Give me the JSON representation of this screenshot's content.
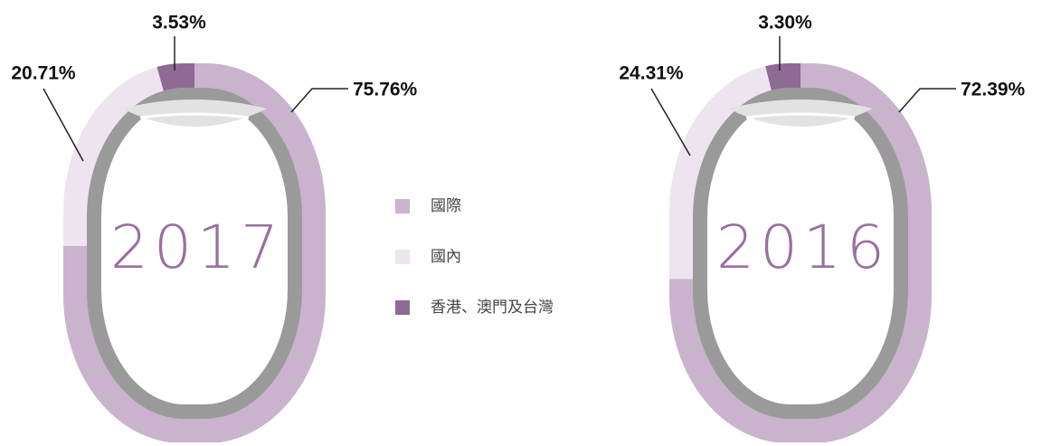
{
  "chart_data": [
    {
      "type": "donut",
      "title": "2017",
      "categories": [
        "國際",
        "國內",
        "香港、澳門及台灣"
      ],
      "colors": [
        "#c9b3cd",
        "#eee4ef",
        "#8f6a95"
      ],
      "values": [
        75.76,
        20.71,
        3.53
      ],
      "value_labels": [
        "75.76%",
        "20.71%",
        "3.53%"
      ]
    },
    {
      "type": "donut",
      "title": "2016",
      "colors": [
        "#c9b3cd",
        "#eee4ef",
        "#8f6a95"
      ],
      "values": [
        72.39,
        24.31,
        3.3
      ],
      "value_labels": [
        "72.39%",
        "24.31%",
        "3.30%"
      ]
    }
  ]
}
